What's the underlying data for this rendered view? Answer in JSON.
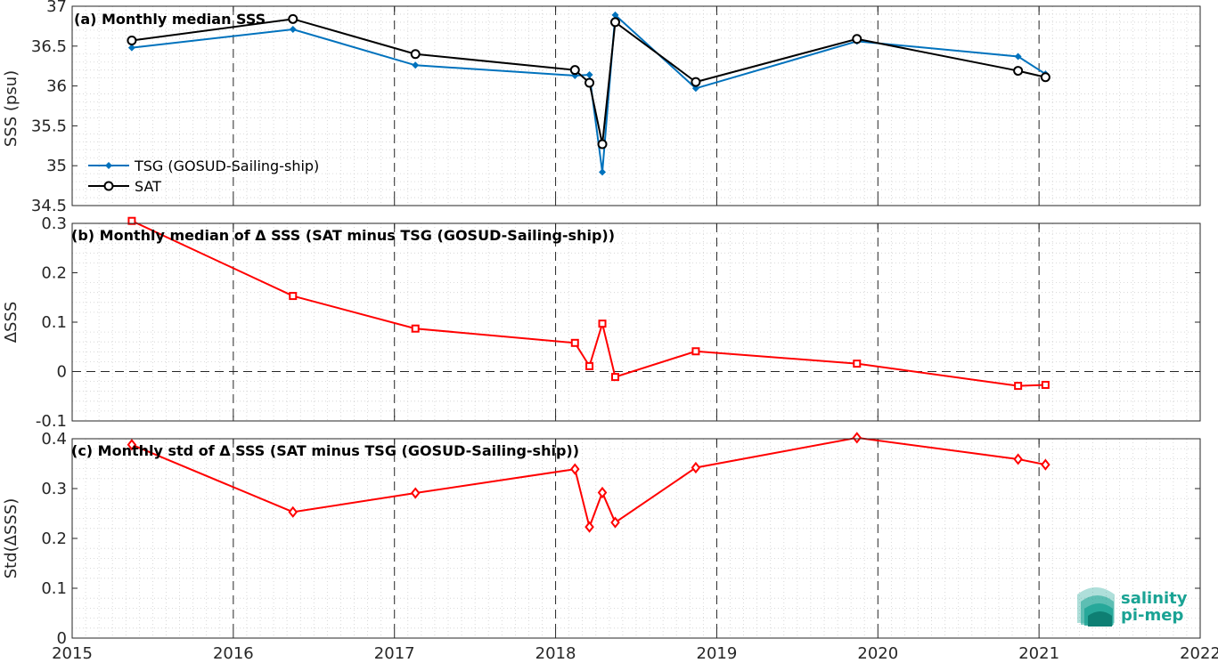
{
  "chart_data": [
    {
      "type": "line",
      "title": "(a) Monthly median SSS",
      "xlabel": "",
      "ylabel": "SSS (psu)",
      "xlim": [
        2015,
        2022
      ],
      "ylim": [
        34.5,
        37
      ],
      "yticks": [
        34.5,
        35,
        35.5,
        36,
        36.5,
        37
      ],
      "ytick_labels": [
        "34.5",
        "35",
        "35.5",
        "36",
        "36.5",
        "37"
      ],
      "grid": "major dashed + minor dotted",
      "legend_position": "lower-left",
      "series": [
        {
          "name": "TSG (GOSUD-Sailing-ship)",
          "color": "#0072BD",
          "marker": "filled-diamond",
          "x": [
            2015.37,
            2016.37,
            2017.13,
            2018.12,
            2018.21,
            2018.29,
            2018.37,
            2018.87,
            2019.87,
            2020.87,
            2021.04
          ],
          "y": [
            36.48,
            36.71,
            36.26,
            36.13,
            36.14,
            34.92,
            36.89,
            35.97,
            36.56,
            36.37,
            36.15
          ]
        },
        {
          "name": "SAT",
          "color": "#000000",
          "marker": "open-circle",
          "x": [
            2015.37,
            2016.37,
            2017.13,
            2018.12,
            2018.21,
            2018.29,
            2018.37,
            2018.87,
            2019.87,
            2020.87,
            2021.04
          ],
          "y": [
            36.57,
            36.84,
            36.4,
            36.2,
            36.04,
            35.27,
            36.8,
            36.05,
            36.59,
            36.19,
            36.11
          ]
        }
      ]
    },
    {
      "type": "line",
      "title": "(b) Monthly median of Δ SSS (SAT minus TSG (GOSUD-Sailing-ship))",
      "xlabel": "",
      "ylabel": "ΔSSS",
      "xlim": [
        2015,
        2022
      ],
      "ylim": [
        -0.1,
        0.3
      ],
      "yticks": [
        -0.1,
        0,
        0.1,
        0.2,
        0.3
      ],
      "ytick_labels": [
        "-0.1",
        "0",
        "0.1",
        "0.2",
        "0.3"
      ],
      "zero_line": true,
      "series": [
        {
          "name": "",
          "color": "#FF0000",
          "marker": "open-square",
          "x": [
            2015.37,
            2016.37,
            2017.13,
            2018.12,
            2018.21,
            2018.29,
            2018.37,
            2018.87,
            2019.87,
            2020.87,
            2021.04
          ],
          "y": [
            0.305,
            0.153,
            0.087,
            0.058,
            0.011,
            0.097,
            -0.011,
            0.041,
            0.016,
            -0.029,
            -0.027
          ]
        }
      ]
    },
    {
      "type": "line",
      "title": "(c) Monthly std of Δ SSS (SAT minus TSG (GOSUD-Sailing-ship))",
      "xlabel": "",
      "ylabel": "Std(ΔSSS)",
      "xlim": [
        2015,
        2022
      ],
      "ylim": [
        0,
        0.4
      ],
      "yticks": [
        0,
        0.1,
        0.2,
        0.3,
        0.4
      ],
      "ytick_labels": [
        "0",
        "0.1",
        "0.2",
        "0.3",
        "0.4"
      ],
      "xticks": [
        2015,
        2016,
        2017,
        2018,
        2019,
        2020,
        2021,
        2022
      ],
      "xtick_labels": [
        "2015",
        "2016",
        "2017",
        "2018",
        "2019",
        "2020",
        "2021",
        "2022"
      ],
      "series": [
        {
          "name": "",
          "color": "#FF0000",
          "marker": "open-diamond",
          "x": [
            2015.37,
            2016.37,
            2017.13,
            2018.12,
            2018.21,
            2018.29,
            2018.37,
            2018.87,
            2019.87,
            2020.87,
            2021.04
          ],
          "y": [
            0.388,
            0.253,
            0.291,
            0.339,
            0.223,
            0.292,
            0.232,
            0.342,
            0.402,
            0.359,
            0.348
          ]
        }
      ]
    }
  ],
  "logo": {
    "line1": "salinity",
    "line2": "pi-mep",
    "color": "#1aa394"
  }
}
